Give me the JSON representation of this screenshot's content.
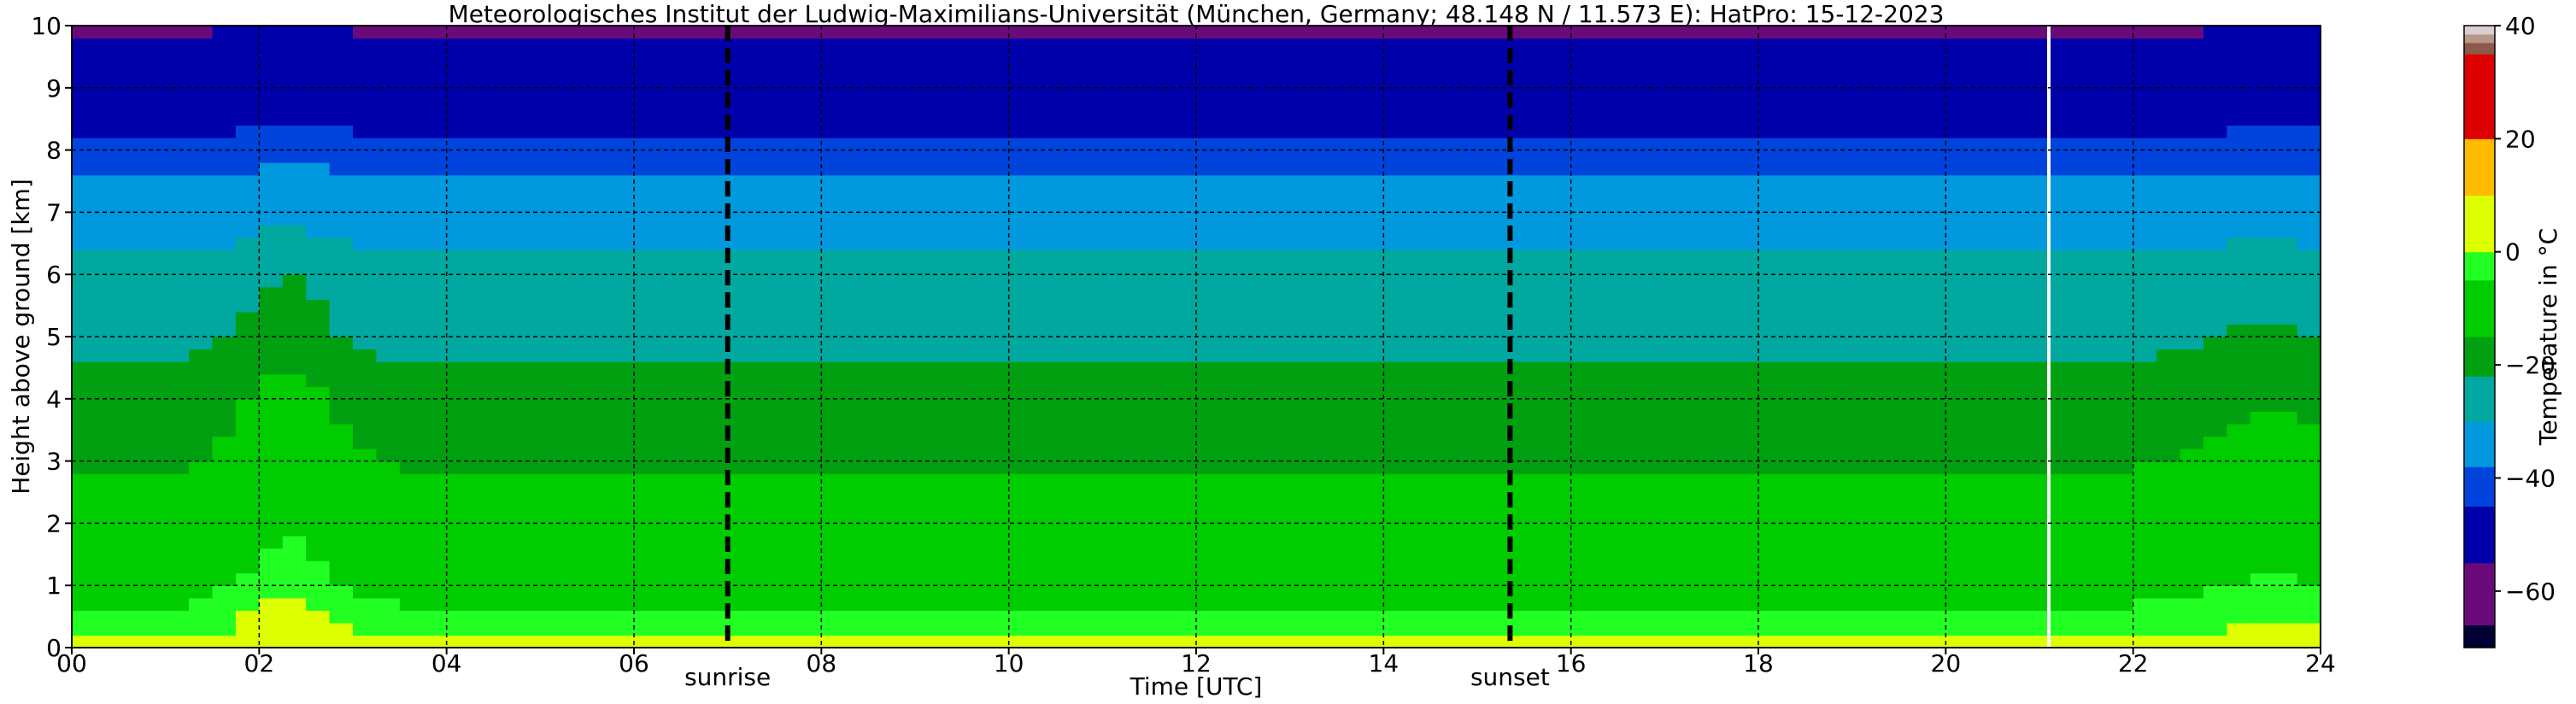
{
  "chart_data": {
    "type": "heatmap",
    "title": "Meteorologisches Institut der Ludwig-Maximilians-Universität (München, Germany; 48.148 N / 11.573 E):    HatPro: 15-12-2023",
    "xlabel": "Time [UTC]",
    "ylabel": "Height above ground [km]",
    "xlim": [
      0,
      24
    ],
    "ylim": [
      0,
      10
    ],
    "x_ticks": [
      "00",
      "02",
      "04",
      "06",
      "08",
      "10",
      "12",
      "14",
      "16",
      "18",
      "20",
      "22",
      "24"
    ],
    "y_ticks": [
      "0",
      "1",
      "2",
      "3",
      "4",
      "5",
      "6",
      "7",
      "8",
      "9",
      "10"
    ],
    "grid": true,
    "annotations": [
      {
        "label": "sunrise",
        "x": 7.0
      },
      {
        "label": "sunset",
        "x": 15.35
      }
    ],
    "data_gap_x": 21.1,
    "colorbar": {
      "label": "Temperature in °C",
      "range": [
        -70,
        40
      ],
      "ticks": [
        "40",
        "20",
        "0",
        "−20",
        "−40",
        "−60"
      ],
      "bands": [
        {
          "from": -70,
          "to": -66,
          "color": "#000033"
        },
        {
          "from": -66,
          "to": -55,
          "color": "#6a0a7a"
        },
        {
          "from": -55,
          "to": -45,
          "color": "#0000aa"
        },
        {
          "from": -45,
          "to": -38,
          "color": "#0044dd"
        },
        {
          "from": -38,
          "to": -30,
          "color": "#0099dd"
        },
        {
          "from": -30,
          "to": -22,
          "color": "#00a8a0"
        },
        {
          "from": -22,
          "to": -15,
          "color": "#00a010"
        },
        {
          "from": -15,
          "to": -5,
          "color": "#00cc00"
        },
        {
          "from": -5,
          "to": 0,
          "color": "#22ff22"
        },
        {
          "from": 0,
          "to": 10,
          "color": "#ddff00"
        },
        {
          "from": 10,
          "to": 20,
          "color": "#ffbb00"
        },
        {
          "from": 20,
          "to": 35,
          "color": "#dd0000"
        },
        {
          "from": 35,
          "to": 37,
          "color": "#8b5a4a"
        },
        {
          "from": 37,
          "to": 38.5,
          "color": "#b89888"
        },
        {
          "from": 38.5,
          "to": 40,
          "color": "#d8d0d0"
        }
      ]
    },
    "temperature_profile": {
      "height_km": [
        0,
        0.3,
        0.8,
        1.5,
        2.5,
        3.5,
        4.3,
        5.0,
        6.0,
        6.8,
        7.5,
        8.0,
        8.5,
        9.0,
        10.0
      ],
      "temperature_c": [
        2,
        -2,
        -6,
        -10,
        -14,
        -17,
        -20,
        -24,
        -28,
        -33,
        -38,
        -43,
        -48,
        -52,
        -56
      ]
    },
    "warm_episodes_hours": [
      {
        "center": 2.3,
        "width": 0.6,
        "delta_c": 6
      },
      {
        "center": 23.4,
        "width": 0.8,
        "delta_c": 3
      }
    ]
  }
}
